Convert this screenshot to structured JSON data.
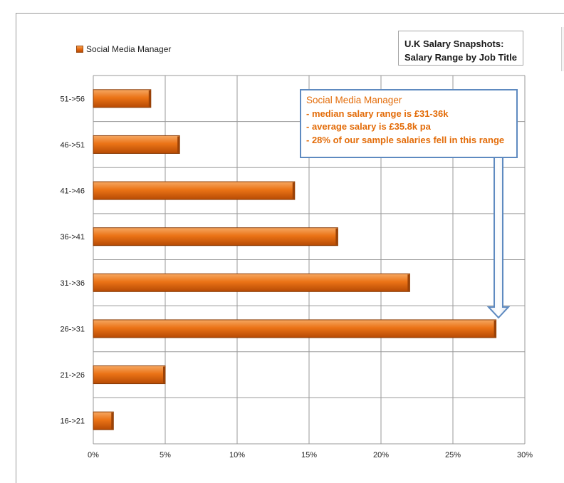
{
  "chart_data": {
    "type": "bar",
    "orientation": "horizontal",
    "title": [
      "U.K Salary Snapshots:",
      "Salary Range  by Job Title"
    ],
    "categories": [
      "16->21",
      "21->26",
      "26->31",
      "31->36",
      "36->41",
      "41->46",
      "46->51",
      "51->56"
    ],
    "series": [
      {
        "name": "Social Media Manager",
        "values": [
          1.4,
          5.0,
          28.0,
          22.0,
          17.0,
          14.0,
          6.0,
          4.0
        ]
      }
    ],
    "xlim": [
      0,
      30
    ],
    "xticks": [
      "0%",
      "5%",
      "10%",
      "15%",
      "20%",
      "25%",
      "30%"
    ],
    "xlabel": "",
    "ylabel": "",
    "grid": true,
    "legend_position": "top-left",
    "bar_color": "#e8690f",
    "annotation": {
      "lines": [
        "Social Media Manager",
        "- median salary range is £31-36k",
        "- average salary is £35.8k  pa",
        "- 28% of our sample salaries fell in this range"
      ],
      "points_to": "26->31",
      "text_color": "#e36c09",
      "border_color": "#5e8ac0"
    }
  }
}
